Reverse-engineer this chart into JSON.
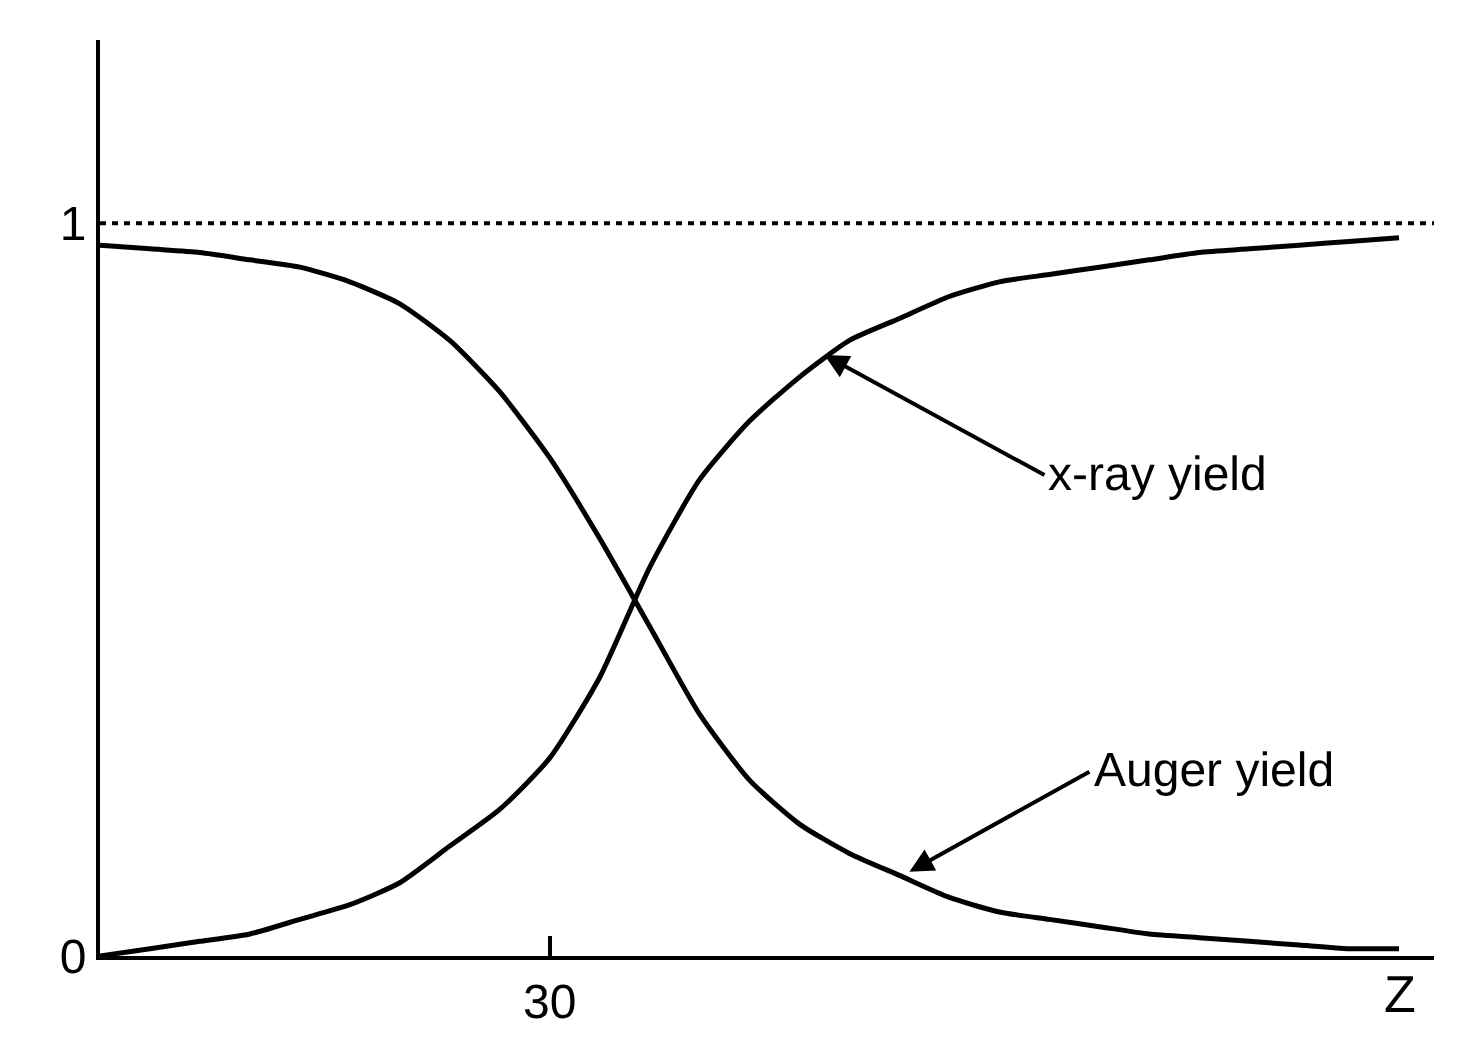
{
  "chart_data": {
    "type": "line",
    "categories": [
      null,
      null,
      null,
      null,
      null,
      null,
      null,
      null,
      null,
      "30",
      null,
      null,
      null,
      null,
      null,
      null,
      null,
      null,
      null,
      null,
      null,
      null,
      null,
      null,
      null,
      null,
      null
    ],
    "series": [
      {
        "color": "#000000",
        "values": [
          0.0,
          0.01,
          0.02,
          0.03,
          0.05,
          0.07,
          0.1,
          0.15,
          0.2,
          0.27,
          0.38,
          0.53,
          0.65,
          0.73,
          0.79,
          0.84,
          0.87,
          0.9,
          0.92,
          0.93,
          0.94,
          0.95,
          0.96,
          0.965,
          0.97,
          0.975,
          0.98
        ]
      },
      {
        "color": "#000000",
        "values": [
          0.97,
          0.965,
          0.96,
          0.95,
          0.94,
          0.92,
          0.89,
          0.84,
          0.77,
          0.68,
          0.57,
          0.45,
          0.33,
          0.24,
          0.18,
          0.14,
          0.11,
          0.08,
          0.06,
          0.05,
          0.04,
          0.03,
          0.025,
          0.02,
          0.015,
          0.01,
          0.01
        ]
      }
    ],
    "xlabel": "Z",
    "ylim": [
      0,
      1.25
    ],
    "yticks": [
      0,
      1
    ],
    "ref_lines": [
      {
        "axis": "y",
        "value": 1,
        "line_style": "dotted",
        "color": "#000000"
      }
    ],
    "annotations": [
      "x-ray yield",
      "Auger yield"
    ],
    "marker": "none",
    "line_style": "solid"
  }
}
